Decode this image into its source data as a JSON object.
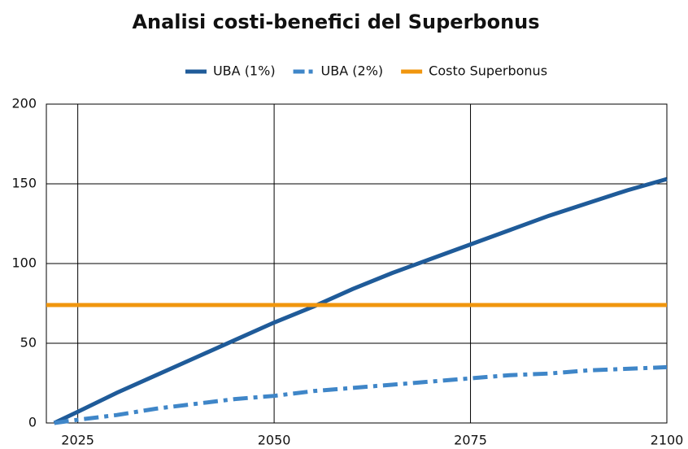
{
  "chart_data": {
    "type": "line",
    "title": "Analisi costi-benefici del Superbonus",
    "x": [
      2021,
      2022,
      2025,
      2030,
      2035,
      2040,
      2045,
      2050,
      2055,
      2060,
      2065,
      2070,
      2075,
      2080,
      2085,
      2090,
      2095,
      2100
    ],
    "series": [
      {
        "name": "UBA (1%)",
        "color": "#1f5b99",
        "dash": "solid",
        "values": [
          null,
          0,
          7,
          19,
          30,
          41,
          52,
          63,
          73,
          84,
          94,
          103,
          112,
          121,
          130,
          138,
          146,
          153
        ]
      },
      {
        "name": "UBA (2%)",
        "color": "#3f86c8",
        "dash": "dashdot",
        "values": [
          null,
          0,
          2,
          5,
          9,
          12,
          15,
          17,
          20,
          22,
          24,
          26,
          28,
          30,
          31,
          33,
          34,
          35
        ]
      },
      {
        "name": "Costo Superbonus",
        "color": "#f0960e",
        "dash": "solid",
        "values": [
          74,
          74,
          74,
          74,
          74,
          74,
          74,
          74,
          74,
          74,
          74,
          74,
          74,
          74,
          74,
          74,
          74,
          74
        ]
      }
    ],
    "xlim": [
      2021,
      2100
    ],
    "xticks": [
      2025,
      2050,
      2075,
      2100
    ],
    "ylim": [
      0,
      200
    ],
    "yticks": [
      0,
      50,
      100,
      150,
      200
    ],
    "grid": true,
    "legend": "top"
  }
}
